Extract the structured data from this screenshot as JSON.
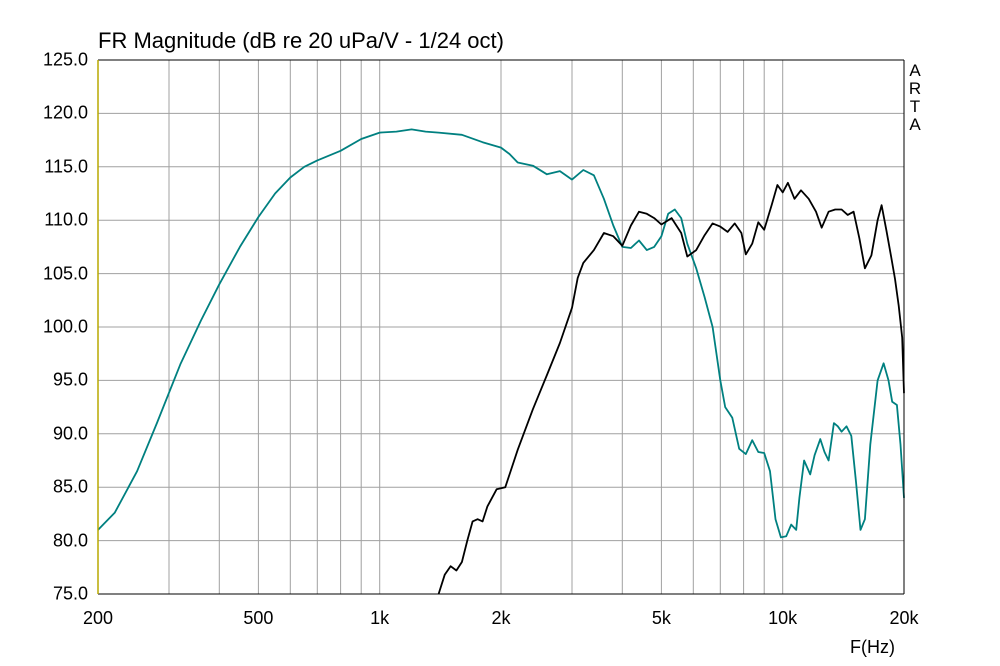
{
  "chart_data": {
    "type": "line",
    "title": "FR Magnitude (dB re 20 uPa/V - 1/24 oct)",
    "watermark": "ARTA",
    "xlabel": "F(Hz)",
    "ylabel": "",
    "xscale": "log",
    "xlim": [
      200,
      20000
    ],
    "ylim": [
      75,
      125
    ],
    "grid": true,
    "legend": "none",
    "x_tick_labels": [
      {
        "value": 200,
        "label": "200"
      },
      {
        "value": 500,
        "label": "500"
      },
      {
        "value": 1000,
        "label": "1k"
      },
      {
        "value": 2000,
        "label": "2k"
      },
      {
        "value": 5000,
        "label": "5k"
      },
      {
        "value": 10000,
        "label": "10k"
      },
      {
        "value": 20000,
        "label": "20k"
      }
    ],
    "y_tick_labels": [
      "75.0",
      "80.0",
      "85.0",
      "90.0",
      "95.0",
      "100.0",
      "105.0",
      "110.0",
      "115.0",
      "120.0",
      "125.0"
    ],
    "colors": {
      "grid": "#a0a0a0",
      "axis_left": "#b8a800"
    },
    "series": [
      {
        "color": "#008080",
        "points": [
          [
            200,
            81
          ],
          [
            220,
            82.6
          ],
          [
            250,
            86.5
          ],
          [
            280,
            91
          ],
          [
            320,
            96.5
          ],
          [
            360,
            100.6
          ],
          [
            400,
            104
          ],
          [
            450,
            107.5
          ],
          [
            500,
            110.3
          ],
          [
            550,
            112.5
          ],
          [
            600,
            114
          ],
          [
            650,
            115
          ],
          [
            700,
            115.6
          ],
          [
            800,
            116.5
          ],
          [
            900,
            117.6
          ],
          [
            1000,
            118.2
          ],
          [
            1100,
            118.3
          ],
          [
            1200,
            118.5
          ],
          [
            1300,
            118.3
          ],
          [
            1400,
            118.2
          ],
          [
            1600,
            118
          ],
          [
            1800,
            117.3
          ],
          [
            2000,
            116.8
          ],
          [
            2100,
            116.2
          ],
          [
            2200,
            115.4
          ],
          [
            2400,
            115.1
          ],
          [
            2600,
            114.3
          ],
          [
            2800,
            114.6
          ],
          [
            3000,
            113.8
          ],
          [
            3200,
            114.7
          ],
          [
            3400,
            114.2
          ],
          [
            3600,
            112
          ],
          [
            3800,
            109.5
          ],
          [
            4000,
            107.5
          ],
          [
            4200,
            107.4
          ],
          [
            4400,
            108.1
          ],
          [
            4600,
            107.2
          ],
          [
            4800,
            107.5
          ],
          [
            5000,
            108.5
          ],
          [
            5200,
            110.6
          ],
          [
            5400,
            111
          ],
          [
            5600,
            110.2
          ],
          [
            5800,
            107.8
          ],
          [
            6100,
            105.5
          ],
          [
            6400,
            102.8
          ],
          [
            6700,
            100
          ],
          [
            7000,
            95
          ],
          [
            7200,
            92.5
          ],
          [
            7500,
            91.5
          ],
          [
            7800,
            88.6
          ],
          [
            8100,
            88.1
          ],
          [
            8400,
            89.4
          ],
          [
            8700,
            88.3
          ],
          [
            9000,
            88.2
          ],
          [
            9300,
            86.5
          ],
          [
            9600,
            82
          ],
          [
            9900,
            80.3
          ],
          [
            10200,
            80.4
          ],
          [
            10500,
            81.5
          ],
          [
            10800,
            81
          ],
          [
            11000,
            84
          ],
          [
            11300,
            87.5
          ],
          [
            11700,
            86.2
          ],
          [
            12000,
            88
          ],
          [
            12400,
            89.5
          ],
          [
            12700,
            88.3
          ],
          [
            13000,
            87.5
          ],
          [
            13400,
            91
          ],
          [
            13700,
            90.7
          ],
          [
            14000,
            90.2
          ],
          [
            14400,
            90.7
          ],
          [
            14800,
            89.8
          ],
          [
            15200,
            85.5
          ],
          [
            15600,
            81
          ],
          [
            16000,
            82
          ],
          [
            16500,
            89
          ],
          [
            17200,
            95
          ],
          [
            17800,
            96.6
          ],
          [
            18300,
            95
          ],
          [
            18700,
            93
          ],
          [
            19200,
            92.7
          ],
          [
            19600,
            89
          ],
          [
            20000,
            84
          ]
        ]
      },
      {
        "color": "#000000",
        "points": [
          [
            1400,
            75
          ],
          [
            1450,
            76.8
          ],
          [
            1500,
            77.6
          ],
          [
            1550,
            77.2
          ],
          [
            1600,
            78
          ],
          [
            1650,
            80
          ],
          [
            1700,
            81.8
          ],
          [
            1750,
            82
          ],
          [
            1800,
            81.8
          ],
          [
            1850,
            83.2
          ],
          [
            1950,
            84.8
          ],
          [
            2050,
            85
          ],
          [
            2200,
            88.5
          ],
          [
            2400,
            92.3
          ],
          [
            2600,
            95.5
          ],
          [
            2800,
            98.5
          ],
          [
            3000,
            101.8
          ],
          [
            3100,
            104.6
          ],
          [
            3200,
            106
          ],
          [
            3400,
            107.2
          ],
          [
            3600,
            108.8
          ],
          [
            3800,
            108.5
          ],
          [
            4000,
            107.6
          ],
          [
            4200,
            109.5
          ],
          [
            4400,
            110.8
          ],
          [
            4600,
            110.6
          ],
          [
            4800,
            110.2
          ],
          [
            5000,
            109.6
          ],
          [
            5300,
            110.2
          ],
          [
            5600,
            108.8
          ],
          [
            5800,
            106.6
          ],
          [
            6100,
            107.2
          ],
          [
            6400,
            108.6
          ],
          [
            6700,
            109.7
          ],
          [
            7000,
            109.4
          ],
          [
            7300,
            108.9
          ],
          [
            7600,
            109.7
          ],
          [
            7900,
            108.8
          ],
          [
            8100,
            106.8
          ],
          [
            8400,
            107.8
          ],
          [
            8700,
            109.8
          ],
          [
            9000,
            109.1
          ],
          [
            9400,
            111.5
          ],
          [
            9700,
            113.3
          ],
          [
            10000,
            112.6
          ],
          [
            10300,
            113.5
          ],
          [
            10700,
            112
          ],
          [
            11100,
            112.8
          ],
          [
            11600,
            112
          ],
          [
            12100,
            110.8
          ],
          [
            12500,
            109.3
          ],
          [
            13000,
            110.8
          ],
          [
            13500,
            111
          ],
          [
            14000,
            111
          ],
          [
            14500,
            110.5
          ],
          [
            15000,
            110.8
          ],
          [
            15500,
            108.3
          ],
          [
            16000,
            105.5
          ],
          [
            16600,
            106.7
          ],
          [
            17200,
            110
          ],
          [
            17600,
            111.4
          ],
          [
            18100,
            109
          ],
          [
            18600,
            106.5
          ],
          [
            19000,
            104.5
          ],
          [
            19400,
            102
          ],
          [
            19800,
            99
          ],
          [
            20000,
            93.8
          ]
        ]
      }
    ]
  }
}
